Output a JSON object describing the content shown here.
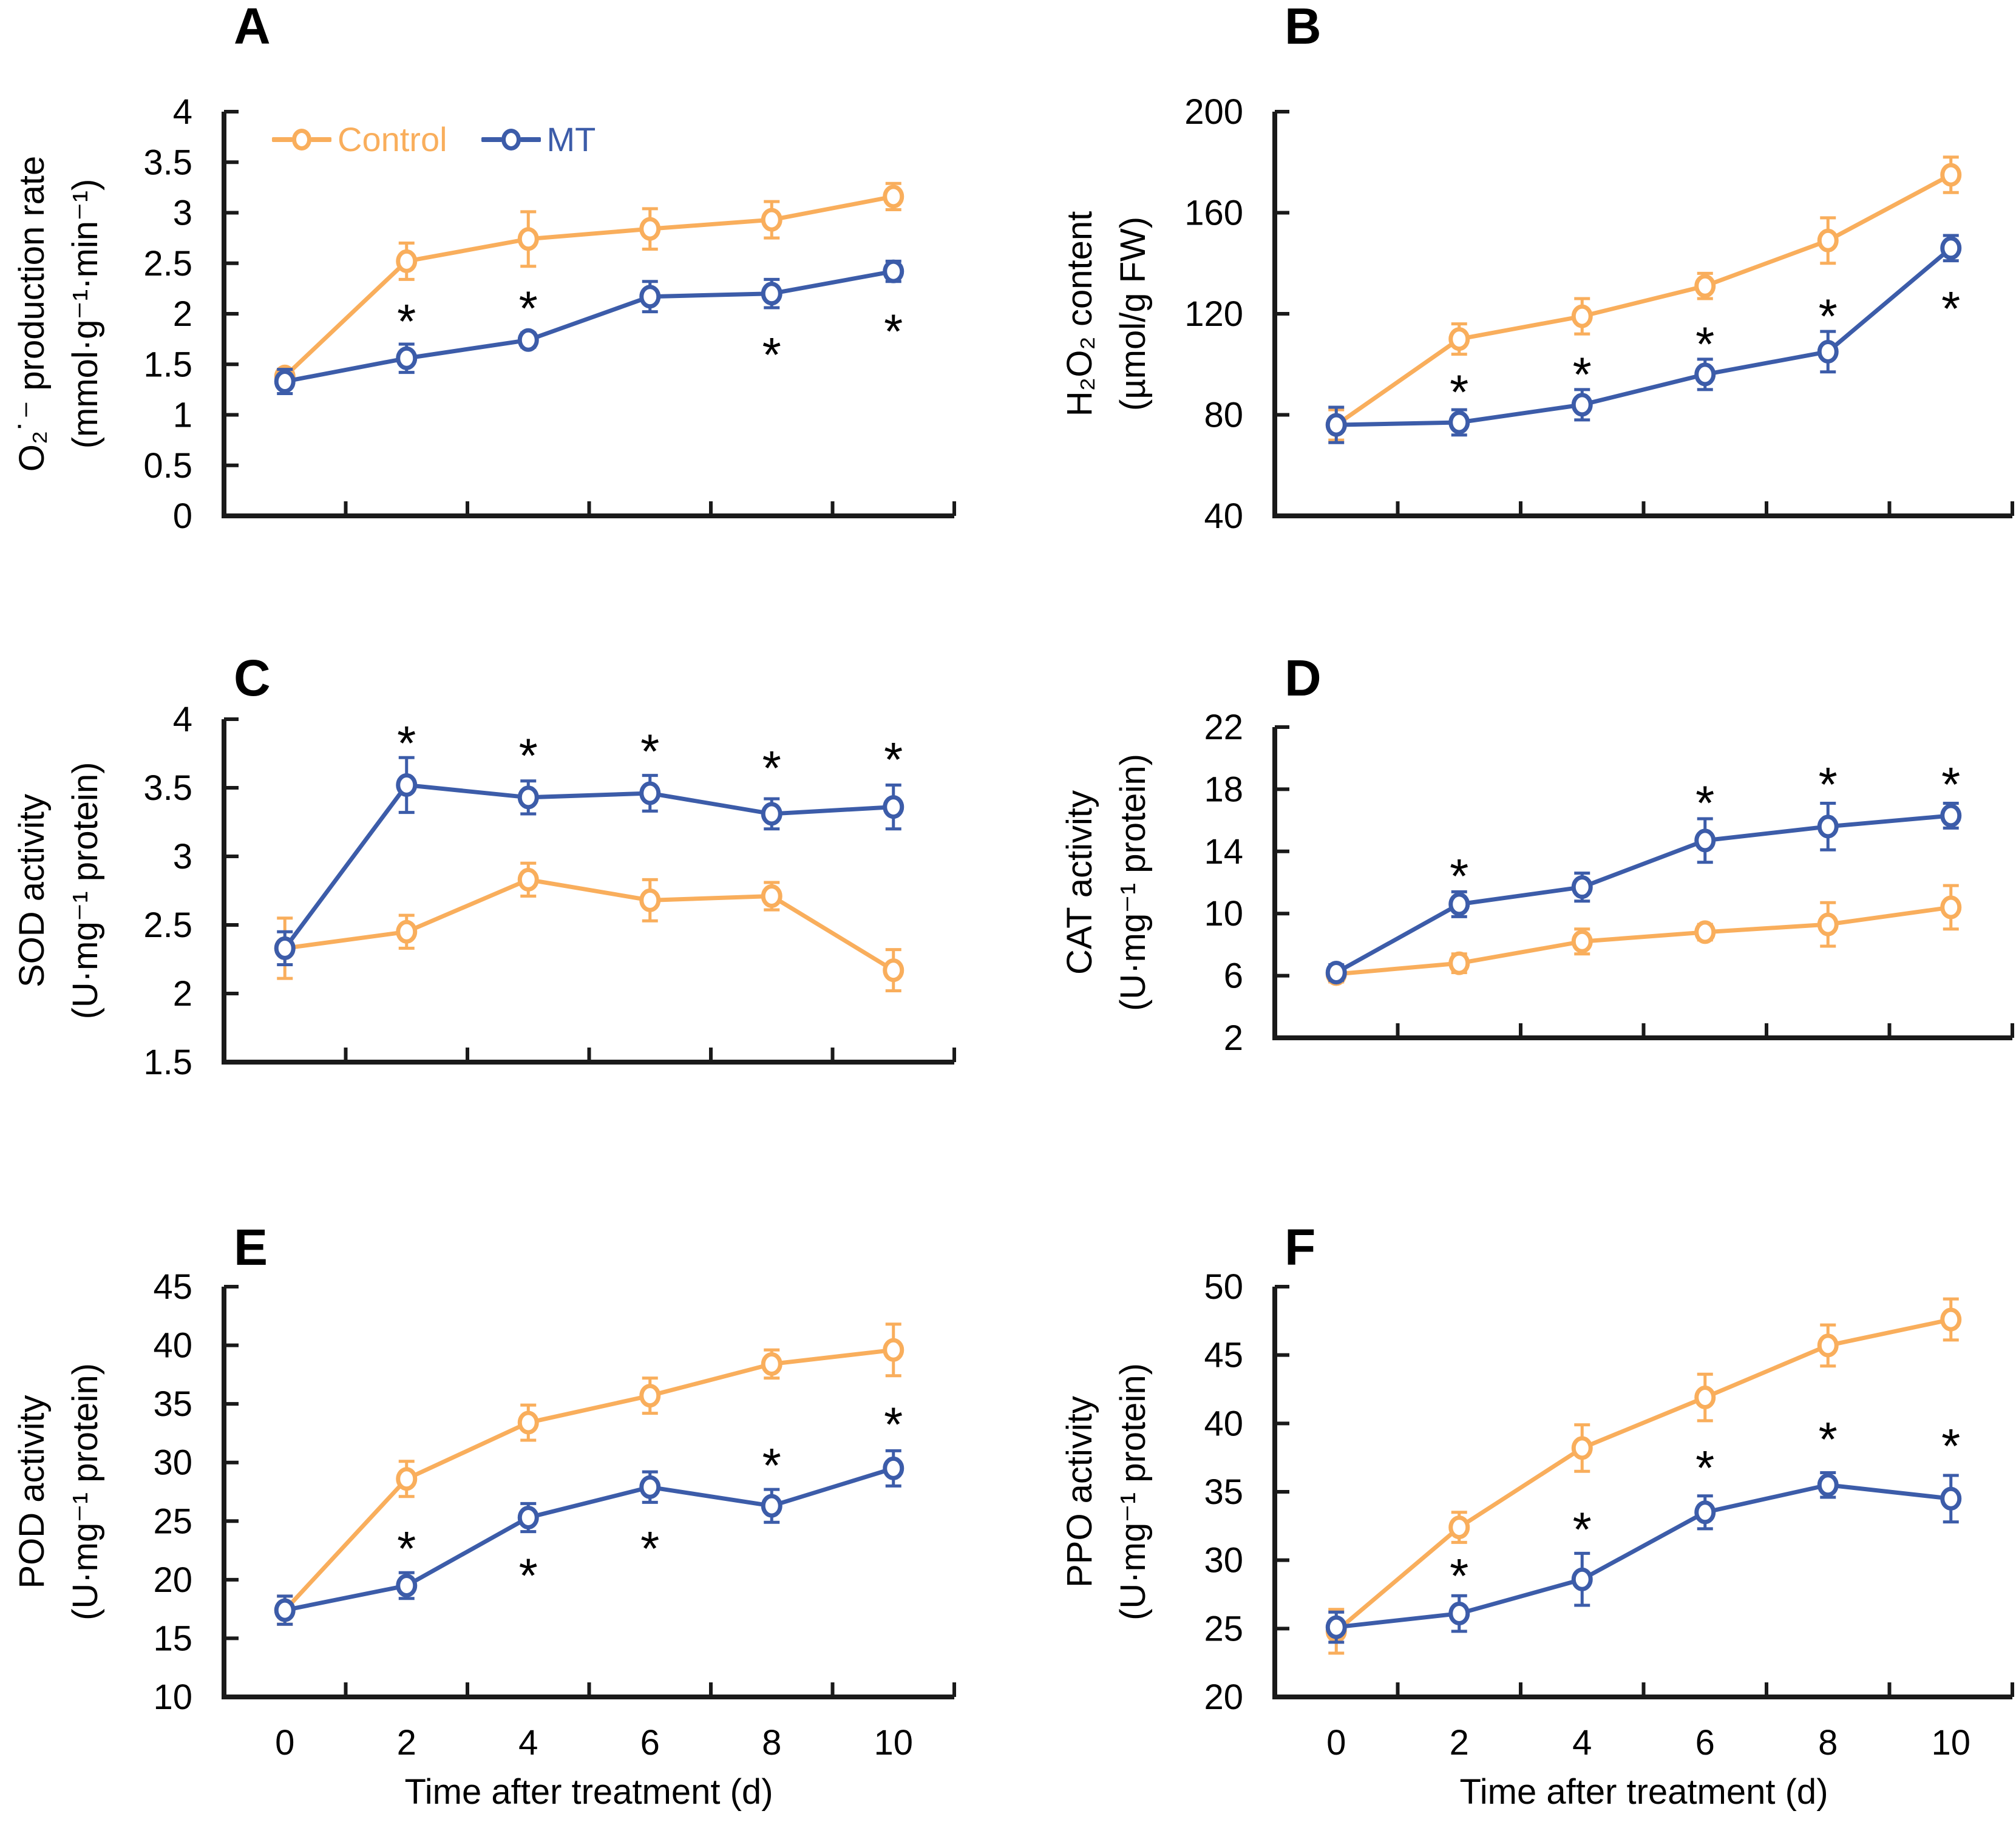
{
  "figure": {
    "background": "#ffffff",
    "x_label": "Time after treatment (d)",
    "x_tick_labels": [
      "0",
      "2",
      "4",
      "6",
      "8",
      "10"
    ],
    "significance_symbol": "*",
    "colors": {
      "control": "#F9AE5C",
      "mt": "#3C5CA9",
      "axis": "#1a1a1a",
      "text": "#000000",
      "marker_fill": "#ffffff"
    },
    "legend": {
      "items": [
        {
          "series": "control",
          "label": "Control"
        },
        {
          "series": "mt",
          "label": "MT"
        }
      ]
    }
  },
  "chart_data": [
    {
      "panel": "A",
      "type": "line",
      "ylabel_line1": "O₂˙⁻ production rate",
      "ylabel_line2": "(mmol·g⁻¹·min⁻¹)",
      "x": [
        0,
        2,
        4,
        6,
        8,
        10
      ],
      "y_min": 0,
      "y_max": 4,
      "y_ticks": [
        "0",
        "0.5",
        "1",
        "1.5",
        "2",
        "2.5",
        "3",
        "3.5",
        "4"
      ],
      "series": [
        {
          "name": "Control",
          "key": "control",
          "values": [
            1.38,
            2.52,
            2.74,
            2.84,
            2.93,
            3.16
          ],
          "errors": [
            0.07,
            0.18,
            0.27,
            0.2,
            0.18,
            0.13
          ]
        },
        {
          "name": "MT",
          "key": "mt",
          "values": [
            1.33,
            1.56,
            1.74,
            2.17,
            2.2,
            2.42
          ],
          "errors": [
            0.12,
            0.14,
            0.07,
            0.15,
            0.14,
            0.1
          ]
        }
      ],
      "asterisks": [
        {
          "x_index": 1,
          "y": 2.0
        },
        {
          "x_index": 2,
          "y": 2.13
        },
        {
          "x_index": 4,
          "y": 1.67
        },
        {
          "x_index": 5,
          "y": 1.9
        }
      ]
    },
    {
      "panel": "B",
      "type": "line",
      "ylabel_line1": "H₂O₂ content",
      "ylabel_line2": "(µmol/g FW)",
      "x": [
        0,
        2,
        4,
        6,
        8,
        10
      ],
      "y_min": 40,
      "y_max": 200,
      "y_ticks": [
        "40",
        "80",
        "120",
        "160",
        "200"
      ],
      "series": [
        {
          "name": "Control",
          "key": "control",
          "values": [
            76,
            110,
            119,
            131,
            149,
            175
          ],
          "errors": [
            6,
            6,
            7,
            5,
            9,
            7
          ]
        },
        {
          "name": "MT",
          "key": "mt",
          "values": [
            76,
            77,
            84,
            96,
            105,
            146
          ],
          "errors": [
            7,
            5,
            6,
            6,
            8,
            5
          ]
        }
      ],
      "asterisks": [
        {
          "x_index": 1,
          "y": 92
        },
        {
          "x_index": 2,
          "y": 99
        },
        {
          "x_index": 3,
          "y": 111
        },
        {
          "x_index": 4,
          "y": 122
        },
        {
          "x_index": 5,
          "y": 125
        }
      ]
    },
    {
      "panel": "C",
      "type": "line",
      "ylabel_line1": "SOD activity",
      "ylabel_line2": "(U·mg⁻¹ protein)",
      "x": [
        0,
        2,
        4,
        6,
        8,
        10
      ],
      "y_min": 1.5,
      "y_max": 4,
      "y_ticks": [
        "1.5",
        "2",
        "2.5",
        "3",
        "3.5",
        "4"
      ],
      "series": [
        {
          "name": "Control",
          "key": "control",
          "values": [
            2.33,
            2.45,
            2.83,
            2.68,
            2.71,
            2.17
          ],
          "errors": [
            0.22,
            0.12,
            0.12,
            0.15,
            0.1,
            0.15
          ]
        },
        {
          "name": "MT",
          "key": "mt",
          "values": [
            2.33,
            3.52,
            3.43,
            3.46,
            3.31,
            3.36
          ],
          "errors": [
            0.12,
            0.2,
            0.12,
            0.13,
            0.11,
            0.16
          ]
        }
      ],
      "asterisks": [
        {
          "x_index": 1,
          "y": 3.88
        },
        {
          "x_index": 2,
          "y": 3.79
        },
        {
          "x_index": 3,
          "y": 3.82
        },
        {
          "x_index": 4,
          "y": 3.7
        },
        {
          "x_index": 5,
          "y": 3.76
        }
      ]
    },
    {
      "panel": "D",
      "type": "line",
      "ylabel_line1": "CAT activity",
      "ylabel_line2": "(U·mg⁻¹ protein)",
      "x": [
        0,
        2,
        4,
        6,
        8,
        10
      ],
      "y_min": 2,
      "y_max": 22,
      "y_ticks": [
        "2",
        "6",
        "10",
        "14",
        "18",
        "22"
      ],
      "series": [
        {
          "name": "Control",
          "key": "control",
          "values": [
            6.1,
            6.8,
            8.2,
            8.8,
            9.3,
            10.4
          ],
          "errors": [
            0.5,
            0.6,
            0.8,
            0.5,
            1.4,
            1.4
          ]
        },
        {
          "name": "MT",
          "key": "mt",
          "values": [
            6.2,
            10.6,
            11.7,
            14.7,
            15.6,
            16.3
          ],
          "errors": [
            0.5,
            0.8,
            0.9,
            1.4,
            1.5,
            0.8
          ]
        }
      ],
      "asterisks": [
        {
          "x_index": 1,
          "y": 12.9
        },
        {
          "x_index": 3,
          "y": 17.6
        },
        {
          "x_index": 4,
          "y": 18.8
        },
        {
          "x_index": 5,
          "y": 18.8
        }
      ]
    },
    {
      "panel": "E",
      "type": "line",
      "ylabel_line1": "POD activity",
      "ylabel_line2": "(U·mg⁻¹ protein)",
      "x": [
        0,
        2,
        4,
        6,
        8,
        10
      ],
      "y_min": 10,
      "y_max": 45,
      "y_ticks": [
        "10",
        "15",
        "20",
        "25",
        "30",
        "35",
        "40",
        "45"
      ],
      "series": [
        {
          "name": "Control",
          "key": "control",
          "values": [
            17.4,
            28.6,
            33.4,
            35.7,
            38.4,
            39.6
          ],
          "errors": [
            1.2,
            1.5,
            1.5,
            1.5,
            1.2,
            2.2
          ]
        },
        {
          "name": "MT",
          "key": "mt",
          "values": [
            17.4,
            19.5,
            25.3,
            27.9,
            26.3,
            29.5
          ],
          "errors": [
            1.2,
            1.1,
            1.2,
            1.3,
            1.4,
            1.5
          ]
        }
      ],
      "asterisks": [
        {
          "x_index": 1,
          "y": 23.3
        },
        {
          "x_index": 2,
          "y": 21.0
        },
        {
          "x_index": 3,
          "y": 23.3
        },
        {
          "x_index": 4,
          "y": 30.4
        },
        {
          "x_index": 5,
          "y": 33.9
        }
      ]
    },
    {
      "panel": "F",
      "type": "line",
      "ylabel_line1": "PPO activity",
      "ylabel_line2": "(U·mg⁻¹ protein)",
      "x": [
        0,
        2,
        4,
        6,
        8,
        10
      ],
      "y_min": 20,
      "y_max": 50,
      "y_ticks": [
        "20",
        "25",
        "30",
        "35",
        "40",
        "45",
        "50"
      ],
      "series": [
        {
          "name": "Control",
          "key": "control",
          "values": [
            24.8,
            32.4,
            38.2,
            41.9,
            45.7,
            47.6
          ],
          "errors": [
            1.6,
            1.1,
            1.7,
            1.7,
            1.5,
            1.5
          ]
        },
        {
          "name": "MT",
          "key": "mt",
          "values": [
            25.1,
            26.1,
            28.6,
            33.5,
            35.5,
            34.5
          ],
          "errors": [
            1.1,
            1.3,
            1.9,
            1.2,
            0.9,
            1.7
          ]
        }
      ],
      "asterisks": [
        {
          "x_index": 1,
          "y": 29.4
        },
        {
          "x_index": 2,
          "y": 32.8
        },
        {
          "x_index": 3,
          "y": 37.3
        },
        {
          "x_index": 4,
          "y": 39.4
        },
        {
          "x_index": 5,
          "y": 38.9
        }
      ]
    }
  ]
}
